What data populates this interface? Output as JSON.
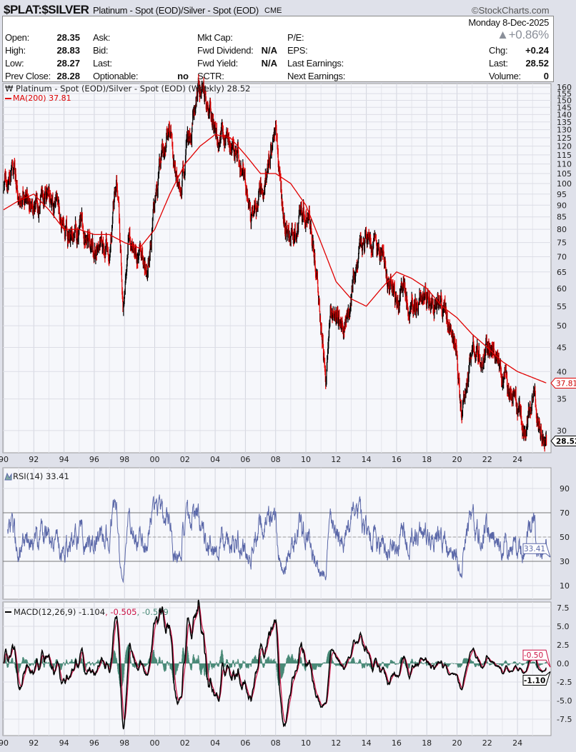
{
  "header": {
    "symbol": "$PLAT:$SILVER",
    "description": "Platinum - Spot (EOD)/Silver - Spot (EOD)",
    "exchange": "CME",
    "brand": "©StockCharts.com",
    "date": "Monday  8-Dec-2025",
    "pct_change": "▲+0.86%",
    "fields": [
      {
        "label": "Open:",
        "value": "28.35"
      },
      {
        "label": "High:",
        "value": "28.83"
      },
      {
        "label": "Low:",
        "value": "28.27"
      },
      {
        "label": "Prev Close:",
        "value": "28.28"
      },
      {
        "label": "Ask:",
        "value": ""
      },
      {
        "label": "Bid:",
        "value": ""
      },
      {
        "label": "Last:",
        "value": ""
      },
      {
        "label": "Optionable:",
        "value": "no"
      },
      {
        "label": "Mkt Cap:",
        "value": ""
      },
      {
        "label": "Fwd Dividend:",
        "value": "N/A"
      },
      {
        "label": "Fwd Yield:",
        "value": "N/A"
      },
      {
        "label": "SCTR:",
        "value": ""
      },
      {
        "label": "P/E:",
        "value": ""
      },
      {
        "label": "EPS:",
        "value": ""
      },
      {
        "label": "Last Earnings:",
        "value": ""
      },
      {
        "label": "Next Earnings:",
        "value": ""
      },
      {
        "label": "Chg:",
        "value": "+0.24"
      },
      {
        "label": "Last:",
        "value": "28.52"
      },
      {
        "label": "Volume:",
        "value": "0"
      }
    ]
  },
  "chart_data": [
    {
      "type": "line",
      "panel": "price",
      "title": "Platinum - Spot (EOD)/Silver - Spot (EOD) (Weekly) 28.52",
      "scale": "log",
      "ylim": [
        27,
        165
      ],
      "yticks": [
        30,
        35,
        40,
        45,
        50,
        55,
        60,
        65,
        70,
        75,
        80,
        85,
        90,
        95,
        100,
        105,
        110,
        115,
        120,
        125,
        130,
        135,
        140,
        145,
        150,
        155,
        160
      ],
      "xticks": [
        "90",
        "92",
        "94",
        "96",
        "98",
        "00",
        "02",
        "04",
        "06",
        "08",
        "10",
        "12",
        "14",
        "16",
        "18",
        "20",
        "22",
        "24"
      ],
      "xlim": [
        1990,
        2025.95
      ],
      "grid": true,
      "up_color": "#000000",
      "down_color": "#e00000",
      "series": [
        {
          "name": "Platinum - Spot (EOD)/Silver - Spot (EOD) (Weekly)",
          "last": "28.52",
          "x": [
            1990,
            1990.5,
            1991,
            1992,
            1993,
            1993.5,
            1994,
            1995,
            1996,
            1997,
            1997.5,
            1997.9,
            1998.3,
            1999,
            1999.5,
            2000,
            2000.7,
            2001,
            2001.5,
            2002,
            2002.7,
            2003,
            2003.5,
            2004,
            2004.5,
            2005,
            2005.5,
            2006,
            2006.5,
            2007,
            2007.5,
            2008,
            2008.5,
            2009,
            2009.5,
            2010,
            2010.5,
            2011,
            2011.3,
            2011.7,
            2012,
            2012.5,
            2013,
            2013.5,
            2014,
            2014.5,
            2015,
            2015.5,
            2016,
            2016.5,
            2017,
            2017.5,
            2018,
            2018.5,
            2019,
            2019.5,
            2020,
            2020.3,
            2020.5,
            2021,
            2021.5,
            2022,
            2022.5,
            2023,
            2023.5,
            2024,
            2024.5,
            2025,
            2025.3,
            2025.6,
            2025.93
          ],
          "y": [
            100,
            108,
            95,
            90,
            92,
            85,
            75,
            82,
            72,
            78,
            100,
            55,
            78,
            70,
            65,
            90,
            125,
            140,
            95,
            110,
            145,
            160,
            150,
            130,
            125,
            120,
            110,
            100,
            85,
            100,
            110,
            125,
            90,
            75,
            85,
            90,
            75,
            50,
            40,
            52,
            55,
            50,
            60,
            70,
            75,
            72,
            70,
            60,
            55,
            60,
            57,
            55,
            58,
            55,
            55,
            50,
            45,
            32,
            37,
            45,
            42,
            45,
            45,
            40,
            37,
            33,
            30,
            36,
            33,
            29,
            28.52
          ]
        },
        {
          "name": "MA(200)",
          "last": "37.81",
          "color": "#e00000",
          "x": [
            1990,
            1991,
            1992,
            1993,
            1994,
            1995,
            1996,
            1997,
            1998,
            1999,
            2000,
            2001,
            2002,
            2003,
            2004,
            2005,
            2006,
            2007,
            2008,
            2009,
            2010,
            2011,
            2012,
            2013,
            2014,
            2015,
            2016,
            2017,
            2018,
            2019,
            2020,
            2021,
            2022,
            2023,
            2024,
            2025.93
          ],
          "y": [
            88,
            92,
            95,
            88,
            80,
            80,
            78,
            78,
            75,
            73,
            80,
            95,
            110,
            120,
            127,
            125,
            115,
            105,
            105,
            100,
            90,
            75,
            62,
            57,
            55,
            60,
            65,
            63,
            60,
            55,
            52,
            48,
            45,
            42,
            40,
            37.81
          ]
        }
      ],
      "last_labels": [
        "28.52",
        "37.81"
      ]
    },
    {
      "type": "line",
      "panel": "rsi",
      "title": "RSI(14) 33.41",
      "ylim": [
        0,
        100
      ],
      "yticks": [
        10,
        30,
        50,
        70,
        90
      ],
      "reference_lines": [
        30,
        50,
        70
      ],
      "color": "#5a67a8",
      "last": "33.41"
    },
    {
      "type": "line",
      "panel": "macd",
      "title": "MACD(12,26,9)",
      "values": {
        "macd": "-1.104",
        "signal": "-0.505",
        "histogram": "-0.599"
      },
      "ylim": [
        -8.5,
        8.5
      ],
      "yticks": [
        "7.5",
        "5.0",
        "2.5",
        "0.0",
        "-2.5",
        "-5.0",
        "-7.5"
      ],
      "colors": {
        "macd": "#000000",
        "signal": "#cc1144",
        "histogram": "#4a8a78"
      },
      "last_labels": [
        "-0.50",
        "-1.10"
      ]
    }
  ]
}
